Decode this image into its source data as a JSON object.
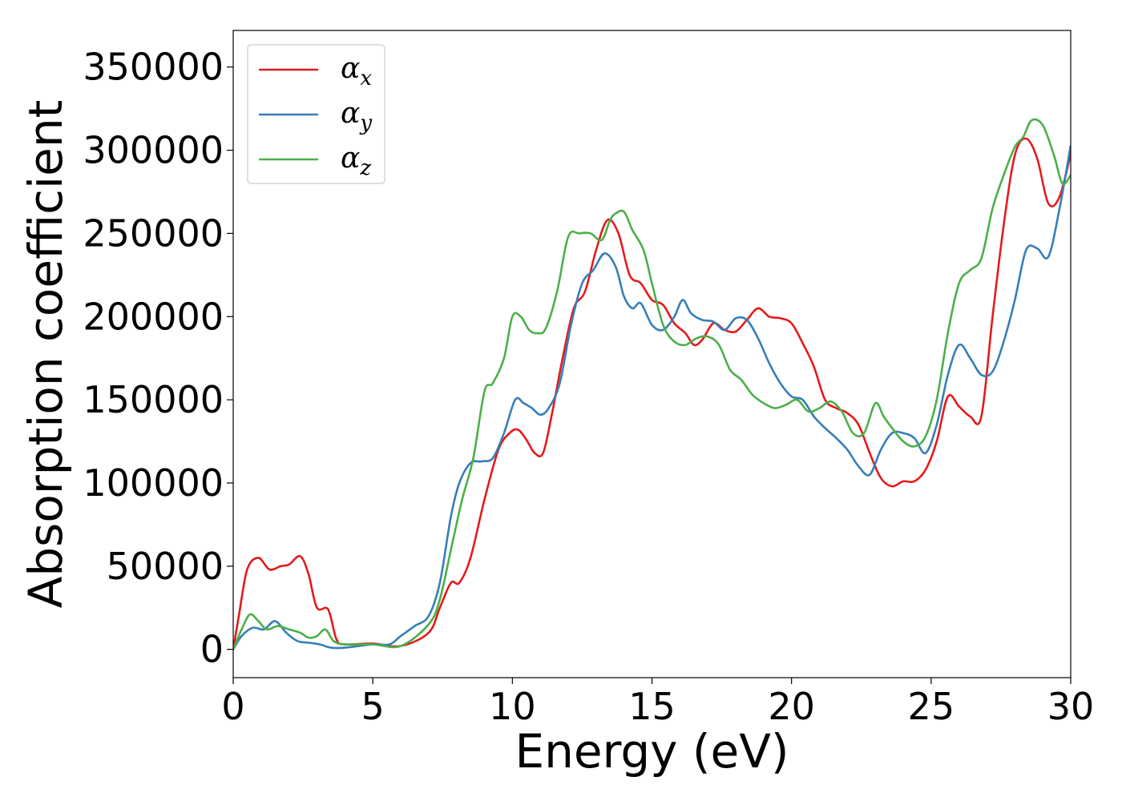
{
  "chart_data": {
    "type": "line",
    "xlabel": "Energy (eV)",
    "ylabel": "Absorption coefficient",
    "xlim": [
      0,
      30
    ],
    "ylim": [
      -17000,
      372000
    ],
    "xticks": [
      0,
      5,
      10,
      15,
      20,
      25,
      30
    ],
    "xtick_labels": [
      "0",
      "5",
      "10",
      "15",
      "20",
      "25",
      "30"
    ],
    "yticks": [
      0,
      50000,
      100000,
      150000,
      200000,
      250000,
      300000,
      350000
    ],
    "ytick_labels": [
      "0",
      "50000",
      "100000",
      "150000",
      "200000",
      "250000",
      "300000",
      "350000"
    ],
    "grid": false,
    "legend_position": "top-left",
    "series": [
      {
        "name": "α",
        "subscript": "x",
        "color": "#e41a1c",
        "x": [
          0,
          0.2,
          0.5,
          0.9,
          1.3,
          1.7,
          2.0,
          2.4,
          2.7,
          3.0,
          3.4,
          3.7,
          4.0,
          5.0,
          6.0,
          7.0,
          7.4,
          7.8,
          8.1,
          8.5,
          9.0,
          9.5,
          9.9,
          10.2,
          10.5,
          10.8,
          11.1,
          11.4,
          11.8,
          12.2,
          12.6,
          13.0,
          13.4,
          13.8,
          14.2,
          14.6,
          15.0,
          15.4,
          15.8,
          16.2,
          16.5,
          16.8,
          17.2,
          17.6,
          18.0,
          18.4,
          18.8,
          19.2,
          19.6,
          20.0,
          20.4,
          20.8,
          21.2,
          21.6,
          22.0,
          22.4,
          22.8,
          23.2,
          23.6,
          24.0,
          24.4,
          24.8,
          25.2,
          25.6,
          26.0,
          26.4,
          26.8,
          27.2,
          27.6,
          28.0,
          28.4,
          28.8,
          29.2,
          29.6,
          30.0
        ],
        "y": [
          0,
          20000,
          48000,
          55000,
          48000,
          50000,
          51000,
          56000,
          45000,
          25000,
          24000,
          6000,
          3000,
          3500,
          2000,
          10000,
          25000,
          40000,
          40000,
          55000,
          90000,
          120000,
          130000,
          132000,
          126000,
          118000,
          118000,
          140000,
          175000,
          205000,
          215000,
          240000,
          258000,
          250000,
          225000,
          220000,
          210000,
          207000,
          196000,
          190000,
          183000,
          186000,
          196000,
          192000,
          191000,
          198000,
          205000,
          200000,
          199000,
          196000,
          184000,
          170000,
          150000,
          145000,
          142000,
          135000,
          118000,
          103000,
          98000,
          101000,
          101000,
          108000,
          125000,
          152000,
          146000,
          140000,
          140000,
          200000,
          255000,
          297000,
          307000,
          295000,
          268000,
          272000,
          298000
        ]
      },
      {
        "name": "α",
        "subscript": "y",
        "color": "#377eb8",
        "x": [
          0,
          0.3,
          0.7,
          1.1,
          1.5,
          1.9,
          2.3,
          2.7,
          3.1,
          3.5,
          4.0,
          5.0,
          5.6,
          6.0,
          6.5,
          7.0,
          7.4,
          7.8,
          8.1,
          8.5,
          8.9,
          9.3,
          9.7,
          10.1,
          10.4,
          10.7,
          11.0,
          11.3,
          11.7,
          12.1,
          12.5,
          12.9,
          13.3,
          13.7,
          14.0,
          14.3,
          14.6,
          15.0,
          15.4,
          15.8,
          16.1,
          16.4,
          16.8,
          17.2,
          17.6,
          18.0,
          18.4,
          18.8,
          19.2,
          19.6,
          20.0,
          20.4,
          20.8,
          21.2,
          21.6,
          22.0,
          22.4,
          22.8,
          23.2,
          23.6,
          24.0,
          24.4,
          24.8,
          25.2,
          25.6,
          26.0,
          26.4,
          26.8,
          27.2,
          27.6,
          28.0,
          28.4,
          28.8,
          29.2,
          29.6,
          30.0
        ],
        "y": [
          0,
          8000,
          13000,
          12000,
          17000,
          10000,
          5000,
          4000,
          3000,
          1000,
          1000,
          3000,
          3000,
          8000,
          14000,
          20000,
          40000,
          80000,
          100000,
          112000,
          113000,
          115000,
          130000,
          150000,
          148000,
          145000,
          141000,
          145000,
          160000,
          195000,
          220000,
          228000,
          238000,
          230000,
          212000,
          205000,
          208000,
          195000,
          192000,
          200000,
          210000,
          202000,
          198000,
          197000,
          192000,
          199000,
          198000,
          187000,
          172000,
          160000,
          152000,
          150000,
          140000,
          133000,
          127000,
          120000,
          110000,
          105000,
          120000,
          130000,
          130000,
          127000,
          118000,
          135000,
          165000,
          183000,
          175000,
          165000,
          167000,
          185000,
          210000,
          240000,
          241000,
          236000,
          265000,
          303000
        ]
      },
      {
        "name": "α",
        "subscript": "z",
        "color": "#4daf4a",
        "x": [
          0,
          0.3,
          0.6,
          0.9,
          1.2,
          1.6,
          2.0,
          2.4,
          2.7,
          3.0,
          3.3,
          3.6,
          4.0,
          5.0,
          6.0,
          7.0,
          7.4,
          7.8,
          8.2,
          8.6,
          9.0,
          9.3,
          9.7,
          10.0,
          10.3,
          10.6,
          10.9,
          11.2,
          11.6,
          12.0,
          12.4,
          12.8,
          13.2,
          13.5,
          13.7,
          14.0,
          14.3,
          14.7,
          15.0,
          15.4,
          15.8,
          16.2,
          16.6,
          17.0,
          17.4,
          17.8,
          18.2,
          18.6,
          19.0,
          19.4,
          19.8,
          20.2,
          20.6,
          21.0,
          21.4,
          21.8,
          22.2,
          22.6,
          23.0,
          23.3,
          23.6,
          24.0,
          24.4,
          24.8,
          25.2,
          25.6,
          26.0,
          26.4,
          26.8,
          27.2,
          27.6,
          28.0,
          28.3,
          28.6,
          29.0,
          29.4,
          29.7,
          30.0
        ],
        "y": [
          0,
          12000,
          21000,
          17000,
          12000,
          14000,
          12000,
          10000,
          7000,
          8000,
          12000,
          5000,
          3000,
          3000,
          2000,
          15000,
          30000,
          60000,
          90000,
          115000,
          155000,
          160000,
          175000,
          200000,
          200000,
          192000,
          190000,
          193000,
          215000,
          248000,
          250000,
          250000,
          246000,
          258000,
          262000,
          263000,
          252000,
          240000,
          220000,
          195000,
          185000,
          183000,
          187000,
          188000,
          183000,
          168000,
          162000,
          153000,
          148000,
          145000,
          147000,
          150000,
          143000,
          145000,
          149000,
          143000,
          130000,
          130000,
          148000,
          140000,
          133000,
          125000,
          122000,
          128000,
          150000,
          190000,
          220000,
          228000,
          235000,
          265000,
          285000,
          302000,
          308000,
          318000,
          315000,
          297000,
          280000,
          285000
        ]
      }
    ]
  }
}
